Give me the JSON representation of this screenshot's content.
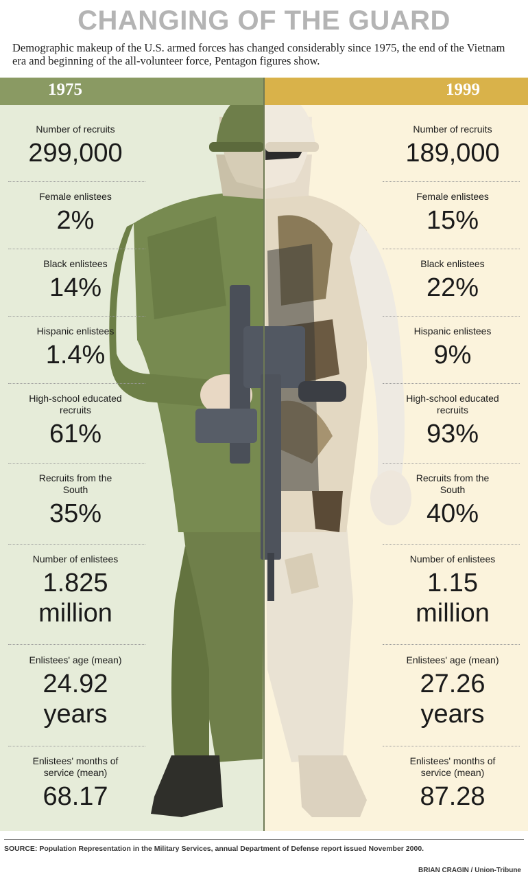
{
  "header": {
    "title": "CHANGING OF THE GUARD",
    "subtitle": "Demographic makeup of the U.S. armed forces has changed considerably since 1975, the end of the Vietnam era and beginning of the all-volunteer force, Pentagon figures show."
  },
  "years": {
    "left": "1975",
    "right": "1999"
  },
  "colors": {
    "left_panel": "#e6ecd9",
    "right_panel": "#fbf3dc",
    "left_bar": "#8a9a63",
    "right_bar": "#d9b24a"
  },
  "stats": [
    {
      "label": "Number of recruits",
      "left": "299,000",
      "right": "189,000"
    },
    {
      "label": "Female enlistees",
      "left": "2%",
      "right": "15%"
    },
    {
      "label": "Black enlistees",
      "left": "14%",
      "right": "22%"
    },
    {
      "label": "Hispanic enlistees",
      "left": "1.4%",
      "right": "9%"
    },
    {
      "label": "High-school educated recruits",
      "left": "61%",
      "right": "93%"
    },
    {
      "label": "Recruits from the South",
      "left": "35%",
      "right": "40%"
    },
    {
      "label": "Number of enlistees",
      "left": "1.825 million",
      "right": "1.15 million"
    },
    {
      "label": "Enlistees' age (mean)",
      "left": "24.92 years",
      "right": "27.26 years"
    },
    {
      "label": "Enlistees' months of service (mean)",
      "left": "68.17",
      "right": "87.28"
    }
  ],
  "footer": {
    "source": "SOURCE: Population Representation in the Military Services, annual Department of Defense report issued November 2000.",
    "credit": "BRIAN CRAGIN / Union-Tribune"
  }
}
